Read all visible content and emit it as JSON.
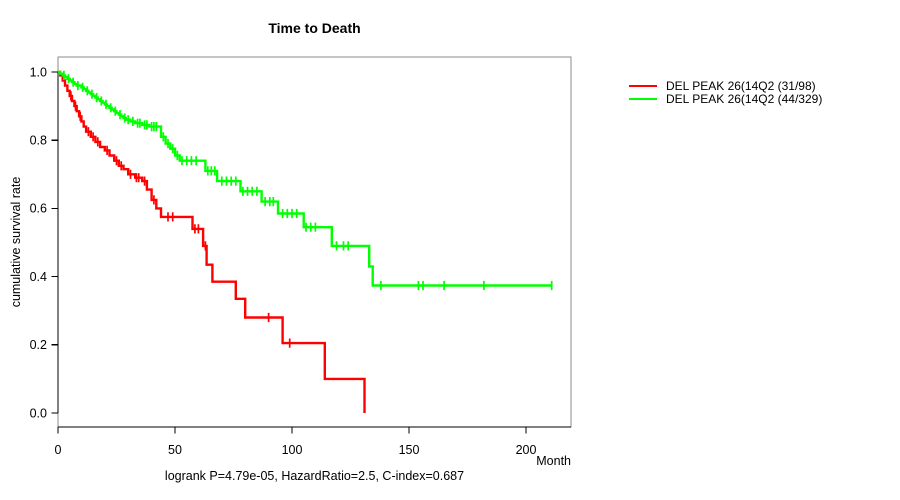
{
  "title": "Time to Death",
  "annotation": "logrank P=4.79e-05, HazardRatio=2.5, C-index=0.687",
  "chart_data": {
    "type": "line",
    "variant": "kaplan-meier-step-survival",
    "title": "Time to Death",
    "xlabel": "Month",
    "ylabel": "cumulative survival rate",
    "xlim": [
      0,
      219
    ],
    "ylim": [
      0,
      1.0
    ],
    "x_ticks": [
      0,
      50,
      100,
      150,
      200
    ],
    "y_ticks": [
      0.0,
      0.2,
      0.4,
      0.6,
      0.8,
      1.0
    ],
    "grid": false,
    "legend_position": "right-outside",
    "axis_box_color": "#8b8b8b",
    "axis_line_color": "#000000",
    "series": [
      {
        "name": "DEL PEAK 26(14Q2 (31/98)",
        "label": "DEL PEAK 26(14Q2 (31/98)",
        "color": "#ff0000",
        "events_over_n": "31/98",
        "end_month": 131,
        "steps": [
          [
            0,
            1.0
          ],
          [
            1,
            0.99
          ],
          [
            2,
            0.975
          ],
          [
            3,
            0.96
          ],
          [
            4,
            0.945
          ],
          [
            5,
            0.93
          ],
          [
            6,
            0.915
          ],
          [
            7,
            0.9
          ],
          [
            8,
            0.885
          ],
          [
            9,
            0.87
          ],
          [
            10,
            0.855
          ],
          [
            11,
            0.84
          ],
          [
            12,
            0.825
          ],
          [
            14,
            0.81
          ],
          [
            16,
            0.795
          ],
          [
            18,
            0.78
          ],
          [
            20,
            0.77
          ],
          [
            22,
            0.755
          ],
          [
            24,
            0.74
          ],
          [
            26,
            0.725
          ],
          [
            28,
            0.715
          ],
          [
            30,
            0.7
          ],
          [
            33,
            0.69
          ],
          [
            36,
            0.68
          ],
          [
            38,
            0.655
          ],
          [
            40,
            0.625
          ],
          [
            42,
            0.6
          ],
          [
            44,
            0.575
          ],
          [
            57.5,
            0.54
          ],
          [
            62,
            0.49
          ],
          [
            63.5,
            0.435
          ],
          [
            66,
            0.385
          ],
          [
            76,
            0.335
          ],
          [
            80,
            0.28
          ],
          [
            96,
            0.205
          ],
          [
            114,
            0.1
          ],
          [
            131,
            0.0
          ]
        ],
        "censor_months": [
          5.5,
          7.5,
          9.5,
          13,
          15,
          17,
          21,
          25,
          27,
          31,
          33.5,
          34.5,
          37,
          41,
          47,
          49,
          58.5,
          60,
          63,
          90,
          99
        ]
      },
      {
        "name": "DEL PEAK 26(14Q2 (44/329)",
        "label": "DEL PEAK 26(14Q2 (44/329)",
        "color": "#00ff00",
        "events_over_n": "44/329",
        "end_month": 211,
        "steps": [
          [
            0,
            1.0
          ],
          [
            1,
            0.995
          ],
          [
            2,
            0.99
          ],
          [
            3,
            0.985
          ],
          [
            4,
            0.98
          ],
          [
            5,
            0.975
          ],
          [
            6,
            0.97
          ],
          [
            7,
            0.965
          ],
          [
            8,
            0.96
          ],
          [
            10,
            0.955
          ],
          [
            11,
            0.95
          ],
          [
            12,
            0.945
          ],
          [
            13,
            0.94
          ],
          [
            14,
            0.935
          ],
          [
            15,
            0.93
          ],
          [
            16,
            0.925
          ],
          [
            17,
            0.92
          ],
          [
            18,
            0.915
          ],
          [
            19,
            0.91
          ],
          [
            20,
            0.905
          ],
          [
            21,
            0.9
          ],
          [
            22,
            0.895
          ],
          [
            23,
            0.89
          ],
          [
            24,
            0.885
          ],
          [
            25,
            0.88
          ],
          [
            26,
            0.875
          ],
          [
            27,
            0.87
          ],
          [
            28,
            0.865
          ],
          [
            29,
            0.86
          ],
          [
            31,
            0.855
          ],
          [
            33,
            0.85
          ],
          [
            36,
            0.845
          ],
          [
            39,
            0.84
          ],
          [
            44,
            0.81
          ],
          [
            46,
            0.79
          ],
          [
            48,
            0.775
          ],
          [
            50,
            0.755
          ],
          [
            52,
            0.74
          ],
          [
            63,
            0.71
          ],
          [
            68,
            0.68
          ],
          [
            78,
            0.65
          ],
          [
            87,
            0.62
          ],
          [
            94,
            0.585
          ],
          [
            105,
            0.545
          ],
          [
            117,
            0.49
          ],
          [
            133,
            0.43
          ],
          [
            134.5,
            0.374
          ]
        ],
        "censor_months": [
          2.5,
          4.5,
          6.5,
          8.5,
          10.5,
          12.5,
          14.5,
          16.5,
          18.5,
          20.5,
          22.5,
          24.5,
          26.5,
          28.5,
          30,
          32,
          34,
          35,
          37,
          38,
          40,
          41,
          42,
          45,
          47,
          49,
          51,
          53,
          55,
          57,
          59,
          64,
          65.5,
          67,
          70,
          72,
          74,
          76,
          79,
          81,
          83,
          85,
          88.5,
          90.5,
          92,
          96,
          98,
          100,
          102,
          106,
          108,
          110,
          119,
          122,
          124,
          138,
          154,
          156,
          165,
          182,
          211
        ]
      }
    ]
  }
}
